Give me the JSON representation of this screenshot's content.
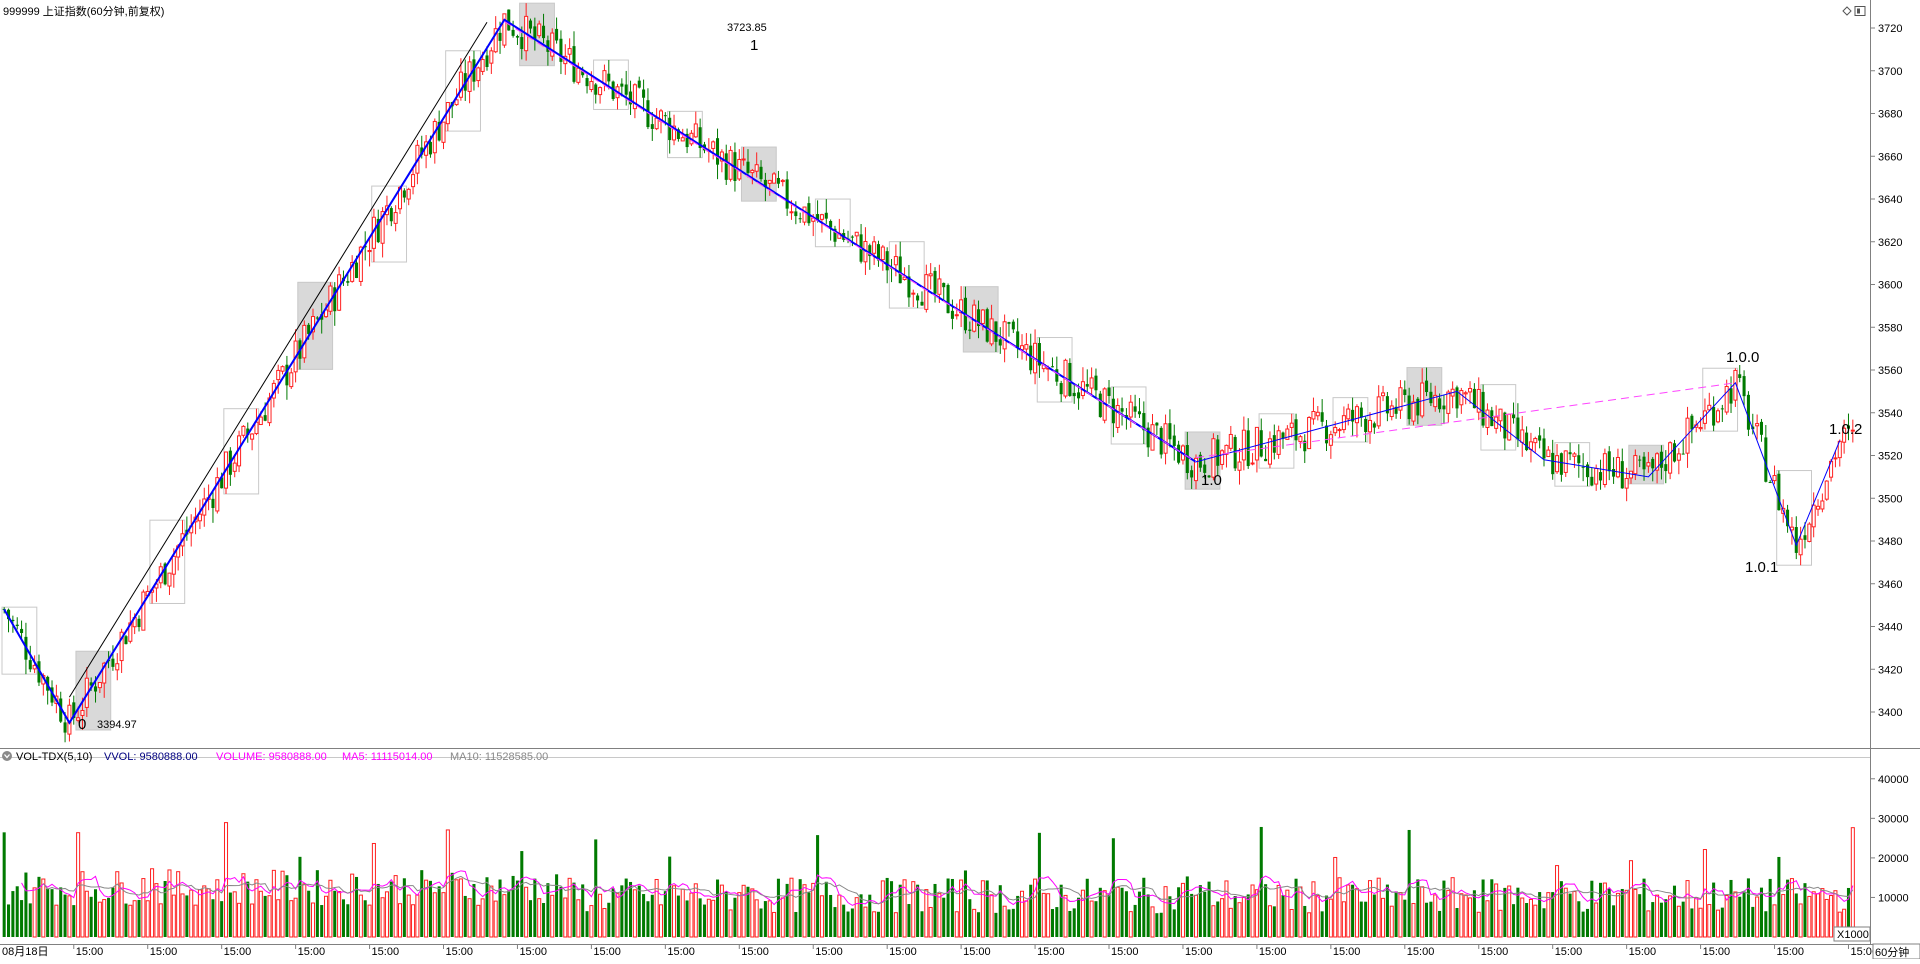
{
  "header": {
    "title": "999999 上证指数(60分钟,前复权)"
  },
  "price_axis_ticks": [
    "3720",
    "3700",
    "3680",
    "3660",
    "3640",
    "3620",
    "3600",
    "3580",
    "3560",
    "3540",
    "3520",
    "3500",
    "3480",
    "3460",
    "3440",
    "3420",
    "3400"
  ],
  "volume_axis_ticks": [
    "40000",
    "30000",
    "20000",
    "10000"
  ],
  "volume_unit": "X1000",
  "period_label": "60分钟",
  "date_axis": {
    "first_label": "08月18日",
    "labels": [
      "15:00",
      "15:00",
      "15:00",
      "15:00",
      "15:00",
      "15:00",
      "15:00",
      "15:00",
      "15:00",
      "15:00",
      "15:00",
      "15:00",
      "15:00",
      "15:00",
      "15:00",
      "15:00",
      "15:00",
      "15:00",
      "15:00",
      "15:00",
      "15:00",
      "15:00",
      "15:00",
      "15:00",
      "15:00"
    ]
  },
  "volume_panel": {
    "indicator": "VOL-TDX(5,10)",
    "vvol": "VVOL: 9580888.00",
    "volume": "VOLUME: 9580888.00",
    "ma5": "MA5: 11115014.00",
    "ma10": "MA10: 11528585.00"
  },
  "annotations": {
    "high_price": "3723.85",
    "low_price": "3394.97",
    "wave_labels": [
      "0",
      "1",
      "1.0",
      "1.0.0",
      "1.0.1",
      "1.0.2"
    ]
  },
  "colors": {
    "up": "#ff2020",
    "down": "#007a00",
    "wave_main": "#0000ff",
    "wave_minor": "#000000",
    "channel": "#ff44ff",
    "ma5": "#ff00ff",
    "ma10": "#888888",
    "vvol": "#000080",
    "box_fill": "#d9d9d9"
  },
  "chart_data": {
    "type": "candlestick",
    "title": "999999 上证指数(60分钟,前复权)",
    "ylim": [
      3385,
      3730
    ],
    "pivots": [
      {
        "bar": 0,
        "price": 3448
      },
      {
        "bar": 15,
        "price": 3394.97,
        "label": "0"
      },
      {
        "bar": 115,
        "price": 3723.85,
        "label": "1"
      },
      {
        "bar": 274,
        "price": 3517,
        "label": "1.0"
      },
      {
        "bar": 334,
        "price": 3550
      },
      {
        "bar": 354,
        "price": 3518
      },
      {
        "bar": 378,
        "price": 3510
      },
      {
        "bar": 398,
        "price": 3554,
        "label": "1.0.0"
      },
      {
        "bar": 412,
        "price": 3478,
        "label": "1.0.1"
      },
      {
        "bar": 422,
        "price": 3527,
        "label": "1.0.2"
      }
    ],
    "volume_axis": {
      "unit": "X1000",
      "ylim": [
        0,
        45000
      ]
    },
    "volume_last": {
      "vvol": 9580888.0,
      "volume": 9580888.0,
      "ma5": 11115014.0,
      "ma10": 11528585.0
    }
  }
}
